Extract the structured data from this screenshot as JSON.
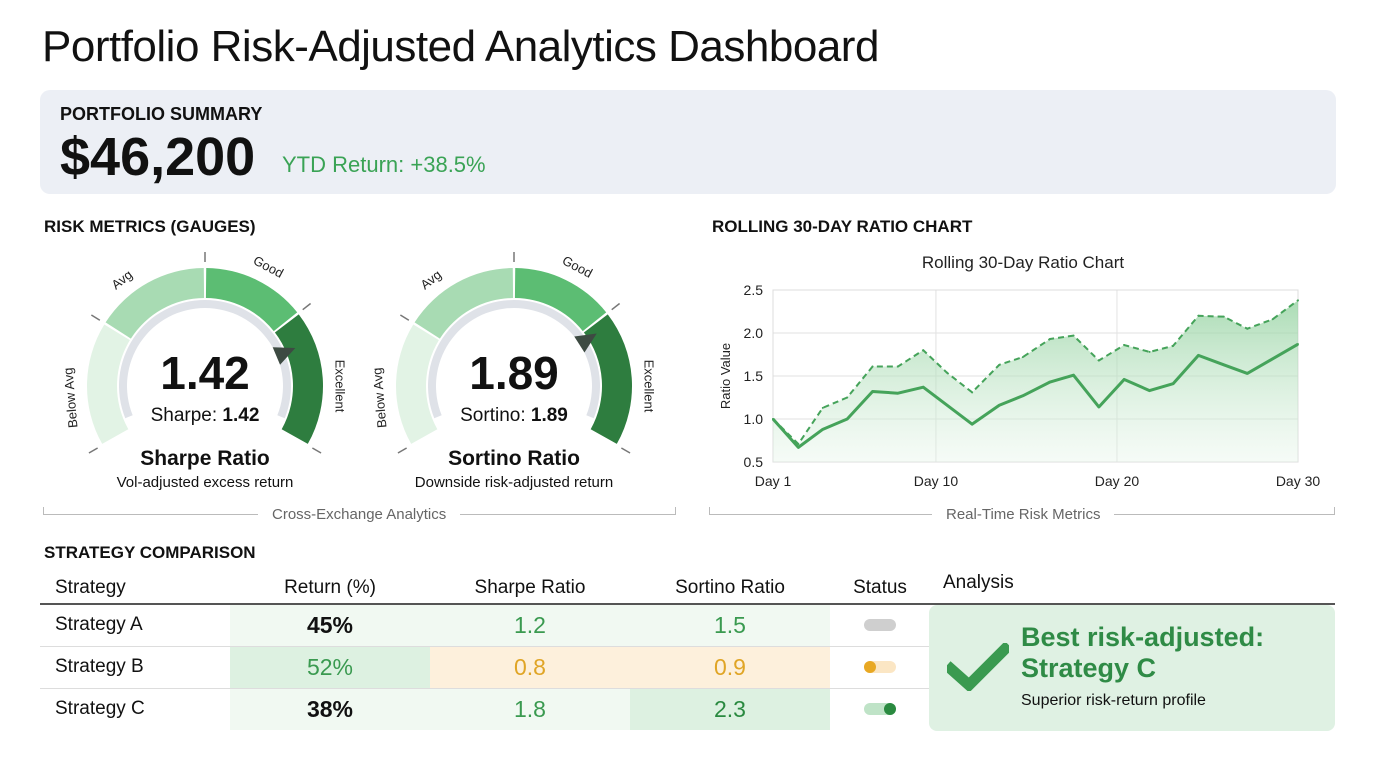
{
  "title": "Portfolio Risk-Adjusted Analytics Dashboard",
  "summary": {
    "label": "PORTFOLIO SUMMARY",
    "value": "$46,200",
    "ytd": "YTD Return: +38.5%"
  },
  "gauges_section": {
    "title": "RISK METRICS (GAUGES)",
    "caption": "Cross-Exchange Analytics",
    "zone_labels": [
      "Below Avg",
      "Avg",
      "Good",
      "Excellent"
    ],
    "gauges": [
      {
        "value": "1.42",
        "sub_label": "Sharpe: ",
        "sub_value": "1.42",
        "name": "Sharpe Ratio",
        "desc": "Vol-adjusted excess return",
        "needle_fraction": 0.78
      },
      {
        "value": "1.89",
        "sub_label": "Sortino: ",
        "sub_value": "1.89",
        "name": "Sortino Ratio",
        "desc": "Downside risk-adjusted return",
        "needle_fraction": 0.74
      }
    ]
  },
  "chart_section": {
    "title": "ROLLING 30-DAY RATIO CHART",
    "caption": "Real-Time Risk Metrics"
  },
  "chart_data": {
    "type": "line",
    "title": "Rolling 30-Day Ratio Chart",
    "xlabel": "",
    "ylabel": "Ratio Value",
    "ylim": [
      0.5,
      2.5
    ],
    "yticks": [
      "0.5",
      "1.0",
      "1.5",
      "2.0",
      "2.5"
    ],
    "xlim": [
      1,
      30
    ],
    "xticks": [
      {
        "x": 1,
        "label": "Day 1"
      },
      {
        "x": 10,
        "label": "Day 10"
      },
      {
        "x": 20,
        "label": "Day 20"
      },
      {
        "x": 30,
        "label": "Day 30"
      }
    ],
    "grid": true,
    "series": [
      {
        "name": "solid",
        "style": "solid",
        "x": [
          1,
          2.4,
          3.75,
          5.1,
          6.5,
          7.9,
          9.3,
          12.0,
          13.5,
          14.8,
          16.3,
          17.6,
          19.0,
          20.4,
          21.8,
          23.1,
          24.5,
          25.9,
          27.2,
          28.6,
          30
        ],
        "values": [
          1.0,
          0.67,
          0.88,
          1.0,
          1.32,
          1.3,
          1.37,
          0.94,
          1.16,
          1.27,
          1.43,
          1.51,
          1.14,
          1.46,
          1.33,
          1.41,
          1.74,
          1.63,
          1.53,
          1.7,
          1.87
        ]
      },
      {
        "name": "dashed",
        "style": "dashed",
        "x": [
          1,
          2.4,
          3.75,
          5.1,
          6.5,
          7.9,
          9.3,
          10.6,
          12.0,
          13.5,
          14.8,
          16.3,
          17.6,
          19.0,
          20.4,
          21.8,
          23.1,
          24.5,
          25.9,
          27.2,
          28.6,
          30
        ],
        "values": [
          1.0,
          0.71,
          1.13,
          1.25,
          1.61,
          1.61,
          1.8,
          1.54,
          1.31,
          1.63,
          1.72,
          1.93,
          1.97,
          1.68,
          1.86,
          1.78,
          1.85,
          2.2,
          2.19,
          2.05,
          2.16,
          2.38
        ]
      }
    ]
  },
  "strategy": {
    "title": "STRATEGY COMPARISON",
    "headers": [
      "Strategy",
      "Return (%)",
      "Sharpe Ratio",
      "Sortino Ratio",
      "Status",
      "Analysis"
    ],
    "rows": [
      {
        "name": "Strategy A",
        "return": "45%",
        "sharpe": "1.2",
        "sortino": "1.5",
        "status": "neutral"
      },
      {
        "name": "Strategy B",
        "return": "52%",
        "sharpe": "0.8",
        "sortino": "0.9",
        "status": "warning"
      },
      {
        "name": "Strategy C",
        "return": "38%",
        "sharpe": "1.8",
        "sortino": "2.3",
        "status": "good"
      }
    ],
    "analysis": {
      "headline": "Best risk-adjusted: Strategy C",
      "sub": "Superior risk-return profile"
    }
  },
  "colors": {
    "green": "#3a9a50",
    "dark_green": "#2a7a3d",
    "orange": "#e0a526",
    "grey": "#c8c8c8"
  }
}
